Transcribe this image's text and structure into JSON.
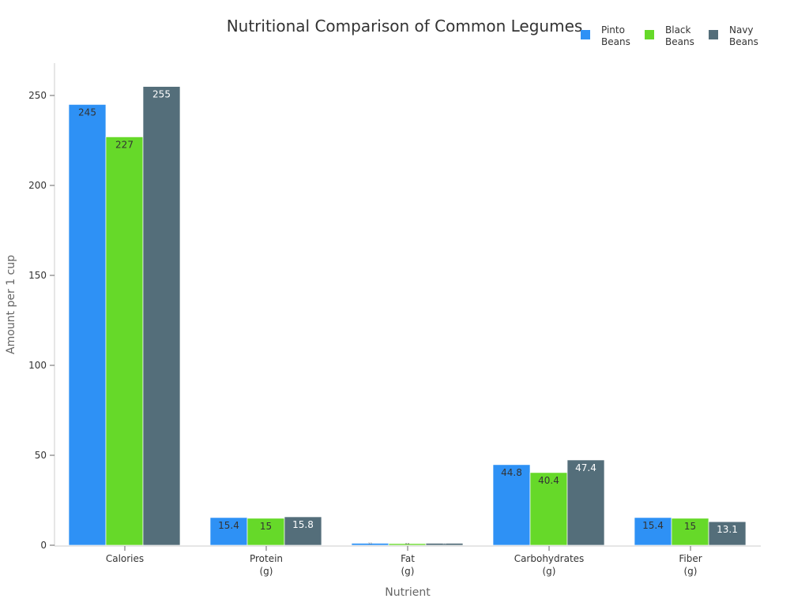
{
  "chart_data": {
    "type": "bar",
    "title": "Nutritional Comparison of Common Legumes",
    "xlabel": "Nutrient",
    "ylabel": "Amount per 1 cup",
    "categories": [
      [
        "Calories"
      ],
      [
        "Protein",
        "(g)"
      ],
      [
        "Fat",
        "(g)"
      ],
      [
        "Carbohydrates",
        "(g)"
      ],
      [
        "Fiber",
        "(g)"
      ]
    ],
    "series": [
      {
        "name": [
          "Pinto",
          "Beans"
        ],
        "color": "#2e91f5",
        "label_color": "#333333",
        "values": [
          245,
          15.4,
          1.1,
          44.8,
          15.4
        ]
      },
      {
        "name": [
          "Black",
          "Beans"
        ],
        "color": "#66d929",
        "label_color": "#333333",
        "values": [
          227,
          15,
          0.9,
          40.4,
          15
        ]
      },
      {
        "name": [
          "Navy",
          "Beans"
        ],
        "color": "#546e7a",
        "label_color": "#ffffff",
        "values": [
          255,
          15.8,
          1.1,
          47.4,
          13.1
        ]
      }
    ],
    "yticks": [
      0,
      50,
      100,
      150,
      200,
      250
    ],
    "ylim": [
      0,
      268
    ],
    "grid": false,
    "legend_position": "top-right"
  }
}
